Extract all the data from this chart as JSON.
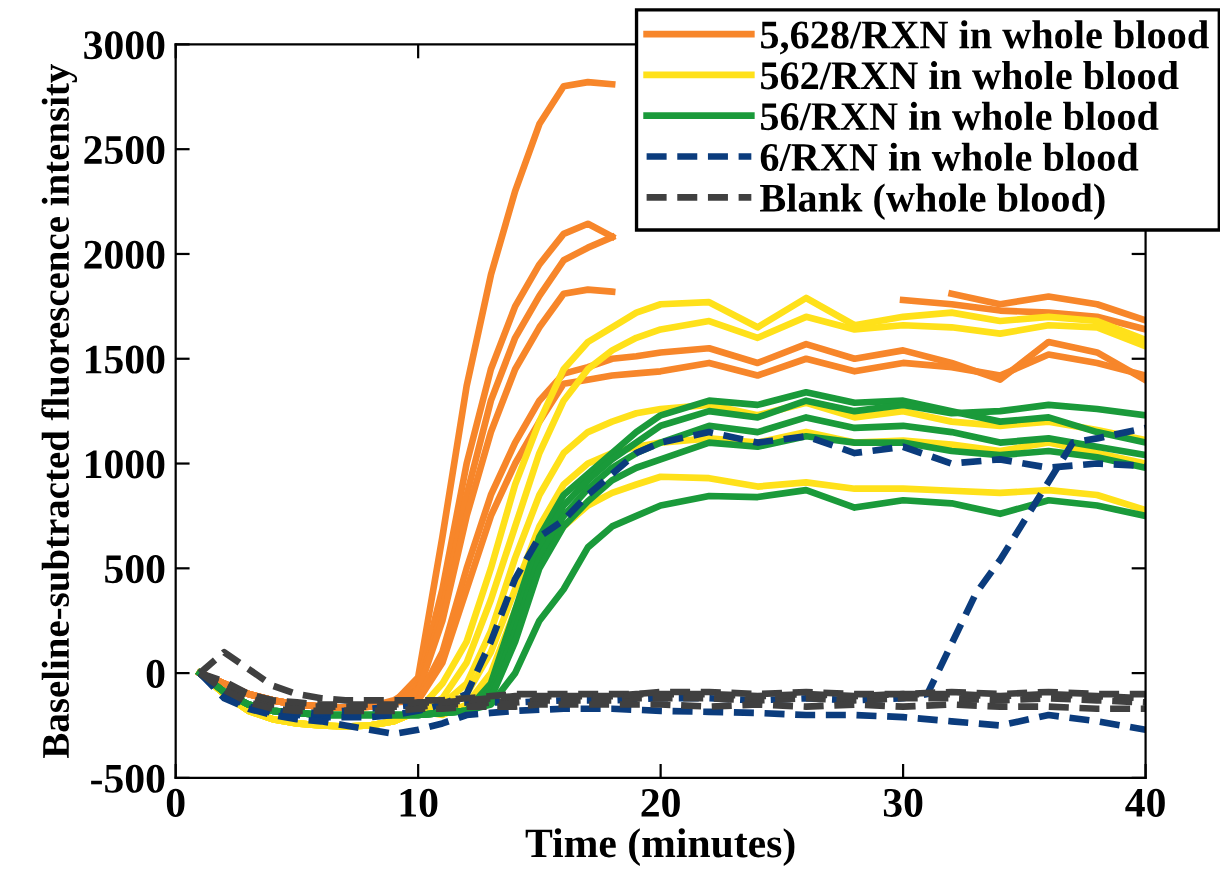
{
  "chart_data": {
    "type": "line",
    "xlabel": "Time (minutes)",
    "ylabel": "Baseline-subtracted fluorescence intensity",
    "x": [
      1,
      2,
      3,
      4,
      5,
      6,
      7,
      8,
      9,
      10,
      11,
      12,
      13,
      14,
      15,
      16,
      17,
      18,
      19,
      20,
      22,
      24,
      26,
      28,
      30,
      32,
      34,
      36,
      38,
      40
    ],
    "xlim": [
      0,
      40
    ],
    "xticks": [
      0,
      10,
      20,
      30,
      40
    ],
    "ylim": [
      -500,
      3000
    ],
    "yticks": [
      -500,
      0,
      500,
      1000,
      1500,
      2000,
      2500,
      3000
    ],
    "grid": false,
    "legend": "top right",
    "line_style": "solid",
    "series": [
      {
        "name": "5,628/RXN in whole blood",
        "color": "#f7862a",
        "values": [
          0,
          -50,
          -100,
          -130,
          -150,
          -160,
          -165,
          -160,
          -140,
          -20,
          650,
          1370,
          1900,
          2300,
          2620,
          2800,
          2820,
          2810,
          null,
          null,
          null,
          null,
          null,
          null,
          null,
          1810,
          1760,
          1797,
          1760,
          1683
        ]
      },
      {
        "color": "#f7862a",
        "values": [
          0,
          -50,
          -100,
          -130,
          -150,
          -160,
          -165,
          -160,
          -130,
          -60,
          400,
          1000,
          1450,
          1750,
          1950,
          2096,
          2144,
          2083,
          null,
          null,
          null,
          null,
          null,
          null,
          null,
          null,
          null,
          null,
          null,
          null
        ]
      },
      {
        "color": "#f7862a",
        "values": [
          0,
          -50,
          -100,
          -130,
          -150,
          -160,
          -165,
          -160,
          -140,
          -80,
          300,
          850,
          1300,
          1600,
          1800,
          1970,
          2030,
          2080,
          null,
          null,
          null,
          null,
          null,
          null,
          null,
          null,
          null,
          null,
          null,
          null
        ]
      },
      {
        "color": "#f7862a",
        "values": [
          0,
          -50,
          -100,
          -130,
          -150,
          -160,
          -165,
          -160,
          -140,
          -90,
          250,
          750,
          1150,
          1450,
          1650,
          1810,
          1830,
          1820,
          null,
          null,
          null,
          null,
          null,
          null,
          1780,
          1760,
          1730,
          1720,
          1700,
          1640
        ]
      },
      {
        "color": "#f7862a",
        "values": [
          0,
          -50,
          -100,
          -130,
          -150,
          -160,
          -165,
          -160,
          -140,
          -120,
          100,
          500,
          850,
          1100,
          1300,
          1429,
          1460,
          1500,
          1512,
          1530,
          1550,
          1480,
          1570,
          1500,
          1540,
          1480,
          1400,
          1580,
          1530,
          1398
        ]
      },
      {
        "color": "#f7862a",
        "values": [
          0,
          -50,
          -100,
          -130,
          -150,
          -160,
          -165,
          -160,
          -140,
          -130,
          50,
          400,
          750,
          1000,
          1200,
          1381,
          1400,
          1420,
          1430,
          1440,
          1480,
          1420,
          1500,
          1440,
          1480,
          1460,
          1420,
          1520,
          1480,
          1420
        ]
      },
      {
        "name": "562/RXN in whole blood",
        "color": "#ffe11a",
        "values": [
          0,
          -100,
          -180,
          -220,
          -240,
          -250,
          -255,
          -250,
          -230,
          -180,
          -50,
          150,
          500,
          900,
          1200,
          1450,
          1580,
          1650,
          1720,
          1760,
          1770,
          1650,
          1790,
          1660,
          1700,
          1720,
          1680,
          1700,
          1680,
          1590
        ]
      },
      {
        "color": "#ffe11a",
        "values": [
          0,
          -100,
          -180,
          -220,
          -240,
          -250,
          -255,
          -250,
          -230,
          -180,
          -120,
          50,
          350,
          700,
          1050,
          1300,
          1450,
          1540,
          1600,
          1640,
          1680,
          1600,
          1700,
          1640,
          1660,
          1650,
          1620,
          1660,
          1650,
          1560
        ]
      },
      {
        "color": "#ffe11a",
        "values": [
          0,
          -100,
          -180,
          -220,
          -240,
          -250,
          -255,
          -250,
          -230,
          -180,
          -150,
          -50,
          200,
          550,
          850,
          1050,
          1150,
          1200,
          1240,
          1260,
          1280,
          1230,
          1290,
          1220,
          1250,
          1200,
          1180,
          1200,
          1160,
          1112
        ]
      },
      {
        "color": "#ffe11a",
        "values": [
          0,
          -100,
          -180,
          -220,
          -240,
          -250,
          -255,
          -250,
          -230,
          -180,
          -180,
          -100,
          100,
          400,
          700,
          900,
          1000,
          1050,
          1080,
          1100,
          1120,
          1100,
          1150,
          1100,
          1110,
          1090,
          1060,
          1100,
          1050,
          1000
        ]
      },
      {
        "color": "#ffe11a",
        "values": [
          0,
          -100,
          -180,
          -220,
          -240,
          -250,
          -255,
          -250,
          -230,
          -180,
          -200,
          -150,
          0,
          300,
          550,
          700,
          800,
          860,
          900,
          937,
          930,
          890,
          910,
          880,
          880,
          870,
          860,
          873,
          850,
          778
        ]
      },
      {
        "name": "56/RXN in whole blood",
        "color": "#1a9a3a",
        "values": [
          0,
          -90,
          -150,
          -180,
          -190,
          -200,
          -200,
          -200,
          -200,
          -200,
          -190,
          -180,
          -50,
          300,
          650,
          850,
          950,
          1050,
          1150,
          1230,
          1300,
          1280,
          1340,
          1290,
          1300,
          1250,
          1200,
          1220,
          1150,
          1100
        ]
      },
      {
        "color": "#1a9a3a",
        "values": [
          0,
          -90,
          -150,
          -180,
          -190,
          -200,
          -200,
          -200,
          -200,
          -200,
          -190,
          -180,
          -80,
          250,
          600,
          800,
          920,
          1020,
          1100,
          1180,
          1250,
          1220,
          1300,
          1250,
          1280,
          1240,
          1250,
          1280,
          1260,
          1230
        ]
      },
      {
        "color": "#1a9a3a",
        "values": [
          0,
          -90,
          -150,
          -180,
          -190,
          -200,
          -200,
          -200,
          -200,
          -200,
          -190,
          -180,
          -100,
          200,
          550,
          750,
          880,
          980,
          1050,
          1100,
          1180,
          1150,
          1220,
          1170,
          1180,
          1150,
          1100,
          1120,
          1080,
          1040
        ]
      },
      {
        "color": "#1a9a3a",
        "values": [
          0,
          -90,
          -150,
          -180,
          -190,
          -200,
          -200,
          -200,
          -200,
          -200,
          -190,
          -180,
          -120,
          150,
          500,
          700,
          820,
          920,
          980,
          1020,
          1100,
          1080,
          1130,
          1100,
          1100,
          1060,
          1040,
          1060,
          1030,
          980
        ]
      },
      {
        "color": "#1a9a3a",
        "values": [
          0,
          -90,
          -150,
          -180,
          -190,
          -200,
          -200,
          -200,
          -200,
          -200,
          -190,
          -180,
          -150,
          0,
          250,
          400,
          600,
          700,
          750,
          800,
          845,
          840,
          873,
          790,
          825,
          810,
          760,
          825,
          800,
          750
        ]
      },
      {
        "name": "6/RXN in whole blood",
        "color": "#0b3c7d",
        "line_style": "dashed",
        "values": [
          0,
          -100,
          -160,
          -190,
          -200,
          -210,
          -210,
          -210,
          -200,
          -180,
          -150,
          -100,
          150,
          450,
          650,
          730,
          850,
          950,
          1050,
          1100,
          1150,
          1100,
          1130,
          1050,
          1080,
          1000,
          1020,
          980,
          1000,
          988
        ]
      },
      {
        "color": "#0b3c7d",
        "line_style": "dashed",
        "x": [
          1,
          2,
          3,
          4,
          5,
          6,
          7,
          8,
          9,
          10,
          12,
          14,
          16,
          18,
          20,
          22,
          24,
          26,
          28,
          30,
          31,
          33,
          34,
          37,
          38,
          40
        ],
        "values": [
          0,
          -100,
          -160,
          -180,
          -190,
          -190,
          -180,
          -170,
          -160,
          -150,
          -140,
          -140,
          -130,
          -130,
          -120,
          -120,
          -130,
          -120,
          -130,
          -120,
          -100,
          380,
          540,
          1100,
          1120,
          1170
        ]
      },
      {
        "color": "#0b3c7d",
        "line_style": "dashed",
        "values": [
          0,
          -120,
          -170,
          -200,
          -220,
          -230,
          -250,
          -270,
          -290,
          -270,
          -240,
          -200,
          -190,
          -180,
          -175,
          -170,
          -170,
          -170,
          -175,
          -180,
          -185,
          -190,
          -200,
          -200,
          -210,
          -230,
          -250,
          -200,
          -230,
          -270
        ]
      },
      {
        "name": "Blank (whole blood)",
        "color": "#404040",
        "line_style": "dashed",
        "values": [
          0,
          100,
          20,
          -60,
          -100,
          -120,
          -130,
          -130,
          -130,
          -130,
          -130,
          -120,
          -110,
          -100,
          -100,
          -100,
          -100,
          -100,
          -100,
          -90,
          -90,
          -100,
          -90,
          -100,
          -100,
          -90,
          -100,
          -90,
          -100,
          -100
        ]
      },
      {
        "color": "#404040",
        "line_style": "dashed",
        "values": [
          0,
          -60,
          -120,
          -150,
          -160,
          -160,
          -160,
          -160,
          -160,
          -160,
          -150,
          -150,
          -140,
          -140,
          -130,
          -130,
          -130,
          -130,
          -120,
          -120,
          -120,
          -130,
          -120,
          -130,
          -120,
          -120,
          -130,
          -120,
          -130,
          -140
        ]
      },
      {
        "color": "#404040",
        "line_style": "dashed",
        "values": [
          0,
          -80,
          -140,
          -170,
          -180,
          -180,
          -180,
          -180,
          -180,
          -170,
          -170,
          -160,
          -160,
          -160,
          -150,
          -150,
          -150,
          -150,
          -150,
          -150,
          -160,
          -150,
          -160,
          -150,
          -160,
          -150,
          -160,
          -160,
          -170,
          -170
        ]
      },
      {
        "color": "#404040",
        "line_style": "dashed",
        "values": [
          0,
          -40,
          -100,
          -130,
          -140,
          -150,
          -150,
          -150,
          -150,
          -140,
          -140,
          -130,
          -120,
          -110,
          -110,
          -110,
          -110,
          -110,
          -100,
          -100,
          -100,
          -110,
          -100,
          -110,
          -100,
          -100,
          -110,
          -100,
          -110,
          -120
        ]
      }
    ]
  }
}
